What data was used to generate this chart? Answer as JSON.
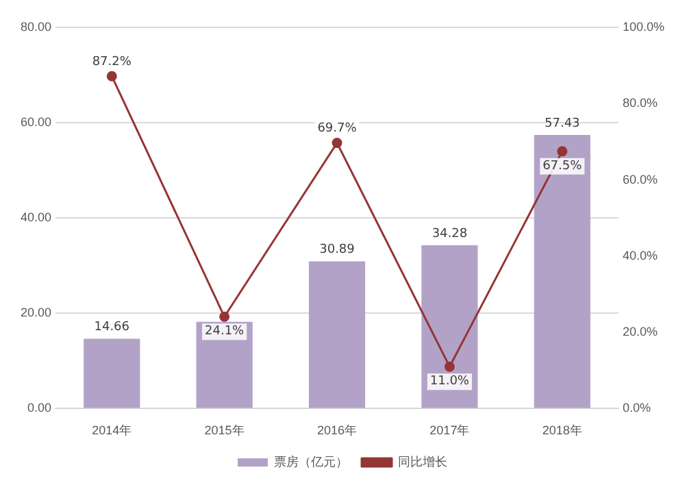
{
  "chart_data": {
    "type": "bar",
    "categories": [
      "2014年",
      "2015年",
      "2016年",
      "2017年",
      "2018年"
    ],
    "series": [
      {
        "name": "票房（亿元）",
        "color": "#b3a2c7",
        "values": [
          14.66,
          18.2,
          30.89,
          34.28,
          57.43
        ],
        "value_labels": [
          "14.66",
          null,
          "30.89",
          "34.28",
          "57.43"
        ]
      },
      {
        "name": "同比增长",
        "type": "line",
        "axis": "y2",
        "color": "#943634",
        "marker": "circle",
        "values": [
          87.2,
          24.1,
          69.7,
          11.0,
          67.5
        ],
        "value_labels": [
          "87.2%",
          "24.1%",
          "69.7%",
          "11.0%",
          "67.5%"
        ]
      }
    ],
    "ylim": [
      0,
      80
    ],
    "yticks": [
      {
        "value": 0,
        "label": "0.00"
      },
      {
        "value": 20,
        "label": "20.00"
      },
      {
        "value": 40,
        "label": "40.00"
      },
      {
        "value": 60,
        "label": "60.00"
      },
      {
        "value": 80,
        "label": "80.00"
      }
    ],
    "y2lim": [
      0,
      100
    ],
    "y2ticks": [
      {
        "value": 0,
        "label": "0.0%"
      },
      {
        "value": 20,
        "label": "20.0%"
      },
      {
        "value": 40,
        "label": "40.0%"
      },
      {
        "value": 60,
        "label": "60.0%"
      },
      {
        "value": 80,
        "label": "80.0%"
      },
      {
        "value": 100,
        "label": "100.0%"
      }
    ],
    "grid": "y",
    "legend": "bottom"
  }
}
